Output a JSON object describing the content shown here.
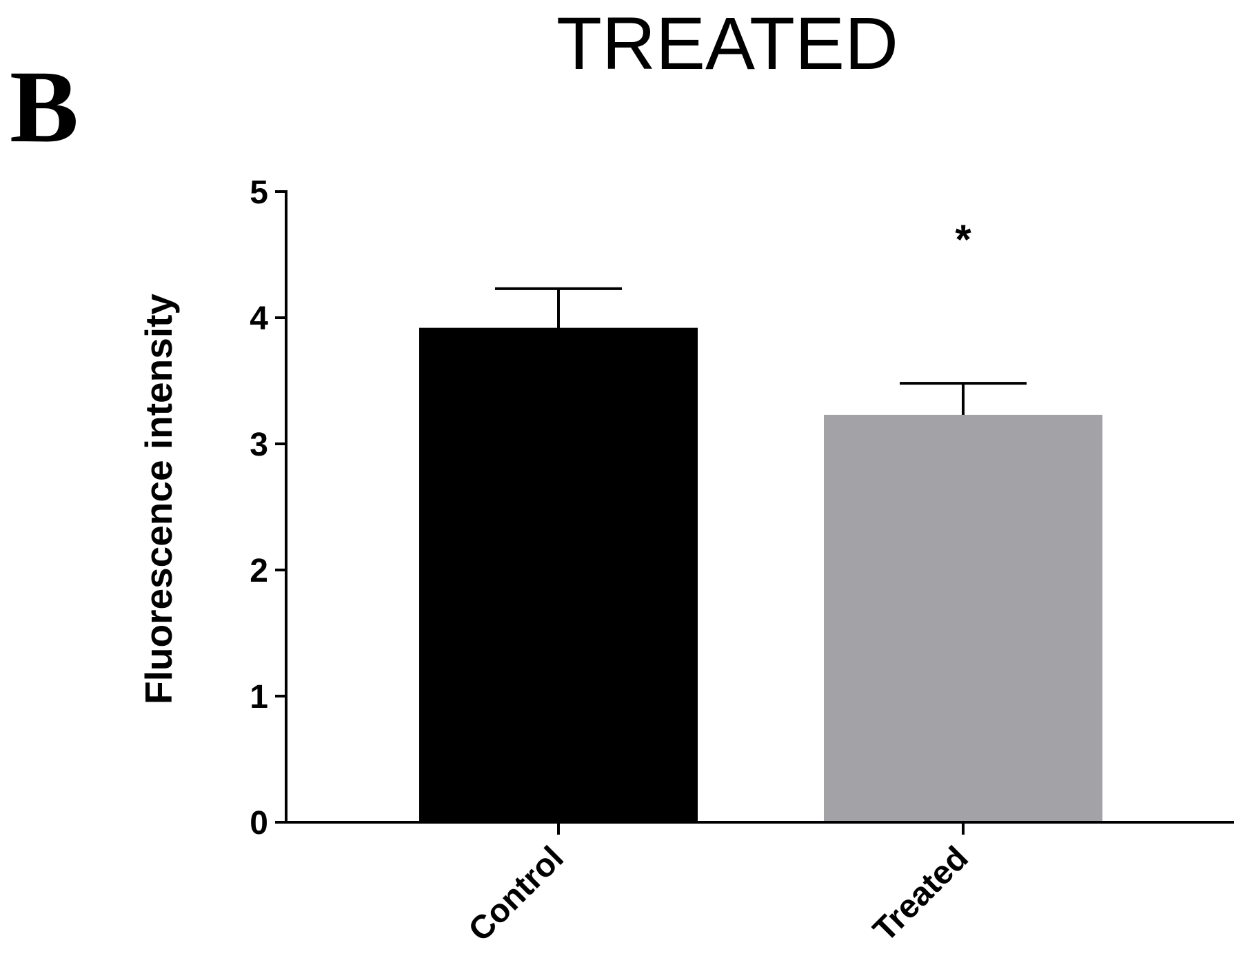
{
  "panel_label": "B",
  "chart_data": {
    "type": "bar",
    "title": "TREATED",
    "xlabel": "",
    "ylabel": "Fluorescence intensity",
    "ylim": [
      0,
      5
    ],
    "yticks": [
      "0",
      "1",
      "2",
      "3",
      "4",
      "5"
    ],
    "categories": [
      "Control",
      "Treated"
    ],
    "values": [
      3.92,
      3.23
    ],
    "errors": [
      0.31,
      0.25
    ],
    "colors": [
      "#000000",
      "#a3a3a7"
    ],
    "annotations": [
      {
        "category": "Treated",
        "text": "*"
      }
    ],
    "grid": false,
    "legend": "none"
  }
}
